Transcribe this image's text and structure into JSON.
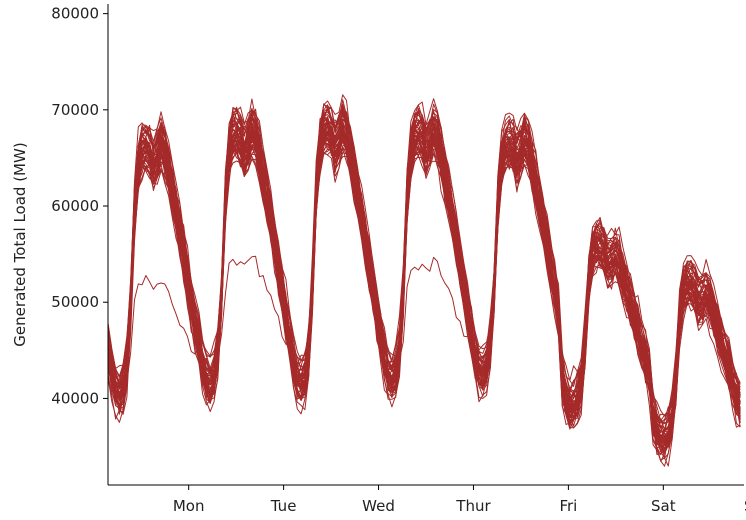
{
  "chart_data": {
    "type": "line",
    "title": "",
    "xlabel": "",
    "ylabel": "Generated Total Load (MW)",
    "ylim": [
      31000,
      81000
    ],
    "xlim": [
      -0.35,
      6.35
    ],
    "y_ticks": [
      40000,
      50000,
      60000,
      70000,
      80000
    ],
    "y_tick_labels": [
      "40000",
      "50000",
      "60000",
      "70000",
      "80000"
    ],
    "x_tick_positions": [
      0.5,
      1.5,
      2.5,
      3.5,
      4.5,
      5.5,
      6.5
    ],
    "categories": [
      "Mon",
      "Tue",
      "Wed",
      "Thur",
      "Fri",
      "Sat",
      "Sun"
    ],
    "grid": false,
    "line_color": "#A52A2A",
    "hours_per_week": 168,
    "hour_range": [
      0,
      167
    ],
    "series_count": 52,
    "representative_series": {
      "description_hours": "hour-of-week 0..167",
      "mean_profile_points": [
        {
          "hour": 0,
          "mw": 42000
        },
        {
          "hour": 4,
          "mw": 37500
        },
        {
          "hour": 8,
          "mw": 45000
        },
        {
          "hour": 12,
          "mw": 67000
        },
        {
          "hour": 18,
          "mw": 66000
        },
        {
          "hour": 24,
          "mw": 44000
        },
        {
          "hour": 36,
          "mw": 68000
        },
        {
          "hour": 48,
          "mw": 45000
        },
        {
          "hour": 60,
          "mw": 70000
        },
        {
          "hour": 72,
          "mw": 45000
        },
        {
          "hour": 84,
          "mw": 68000
        },
        {
          "hour": 96,
          "mw": 45000
        },
        {
          "hour": 108,
          "mw": 67000
        },
        {
          "hour": 120,
          "mw": 45000
        },
        {
          "hour": 132,
          "mw": 58000
        },
        {
          "hour": 144,
          "mw": 37000
        },
        {
          "hour": 156,
          "mw": 55000
        },
        {
          "hour": 167,
          "mw": 47000
        }
      ]
    }
  }
}
